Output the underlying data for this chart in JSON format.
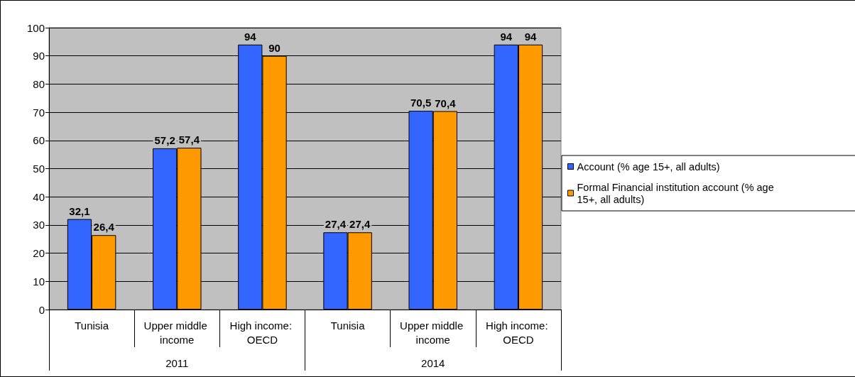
{
  "chart_data": {
    "type": "bar",
    "categories": [
      "Tunisia",
      "Upper middle income",
      "High income: OECD",
      "Tunisia",
      "Upper middle income",
      "High income: OECD"
    ],
    "series": [
      {
        "name": "Account (% age 15+, all adults)",
        "color": "#3366ff",
        "values": [
          32.1,
          57.2,
          94,
          27.4,
          70.5,
          94
        ],
        "value_labels": [
          "32,1",
          "57,2",
          "94",
          "27,4",
          "70,5",
          "94"
        ]
      },
      {
        "name": "Formal Financial institution account (% age 15+, all adults)",
        "color": "#ff9900",
        "values": [
          26.4,
          57.4,
          90,
          27.4,
          70.4,
          94
        ],
        "value_labels": [
          "26,4",
          "57,4",
          "90",
          "27,4",
          "70,4",
          "94"
        ]
      }
    ],
    "ylim": [
      0,
      100
    ],
    "yticks": [
      0,
      10,
      20,
      30,
      40,
      50,
      60,
      70,
      80,
      90,
      100
    ],
    "grid": "y",
    "legend": "right",
    "annotations": [
      "2011",
      "2014"
    ]
  }
}
